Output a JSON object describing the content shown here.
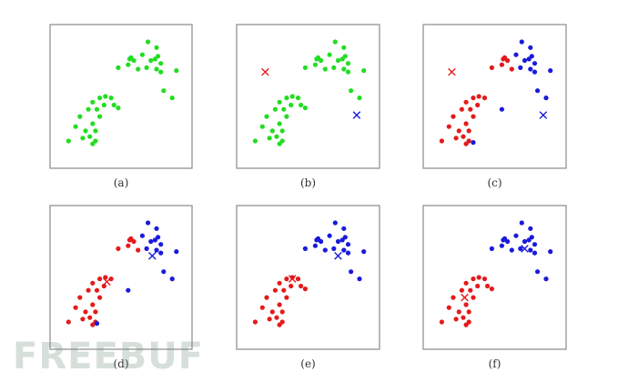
{
  "colors": {
    "green": "#22dd22",
    "red": "#e41a1a",
    "blue": "#1a1adc",
    "frame": "#8a8a8a"
  },
  "watermark": {
    "text": "FREEBUF"
  },
  "chart_data": [
    {
      "type": "scatter",
      "caption": "(a)",
      "xlim": [
        0,
        10
      ],
      "ylim": [
        0,
        10
      ],
      "series": [
        {
          "color": "green",
          "points": [
            [
              1.3,
              1.9
            ],
            [
              1.8,
              2.9
            ],
            [
              2.1,
              3.6
            ],
            [
              2.3,
              2.1
            ],
            [
              2.5,
              2.6
            ],
            [
              2.7,
              4.1
            ],
            [
              3.0,
              3.1
            ],
            [
              3.0,
              4.6
            ],
            [
              3.3,
              4.1
            ],
            [
              3.5,
              3.6
            ],
            [
              3.5,
              4.9
            ],
            [
              3.2,
              2.6
            ],
            [
              3.0,
              1.7
            ],
            [
              3.2,
              1.9
            ],
            [
              2.8,
              2.2
            ],
            [
              3.8,
              4.4
            ],
            [
              3.9,
              5.0
            ],
            [
              4.3,
              4.9
            ],
            [
              4.5,
              4.4
            ],
            [
              4.8,
              4.2
            ],
            [
              4.8,
              7.0
            ],
            [
              5.5,
              7.2
            ],
            [
              5.7,
              7.7
            ],
            [
              5.9,
              7.5
            ],
            [
              6.2,
              6.9
            ],
            [
              6.5,
              7.9
            ],
            [
              6.8,
              7.0
            ],
            [
              7.1,
              7.5
            ],
            [
              7.5,
              6.9
            ],
            [
              7.5,
              8.4
            ],
            [
              7.6,
              7.8
            ],
            [
              7.8,
              7.3
            ],
            [
              7.8,
              6.7
            ],
            [
              8.0,
              5.4
            ],
            [
              8.6,
              4.9
            ],
            [
              8.9,
              6.8
            ],
            [
              6.9,
              8.8
            ],
            [
              7.4,
              7.6
            ],
            [
              5.6,
              7.6
            ]
          ]
        }
      ]
    },
    {
      "type": "scatter",
      "caption": "(b)",
      "xlim": [
        0,
        10
      ],
      "ylim": [
        0,
        10
      ],
      "series": [
        {
          "color": "green",
          "points": [
            [
              1.3,
              1.9
            ],
            [
              1.8,
              2.9
            ],
            [
              2.1,
              3.6
            ],
            [
              2.3,
              2.1
            ],
            [
              2.5,
              2.6
            ],
            [
              2.7,
              4.1
            ],
            [
              3.0,
              3.1
            ],
            [
              3.0,
              4.6
            ],
            [
              3.3,
              4.1
            ],
            [
              3.5,
              3.6
            ],
            [
              3.5,
              4.9
            ],
            [
              3.2,
              2.6
            ],
            [
              3.0,
              1.7
            ],
            [
              3.2,
              1.9
            ],
            [
              2.8,
              2.2
            ],
            [
              3.8,
              4.4
            ],
            [
              3.9,
              5.0
            ],
            [
              4.3,
              4.9
            ],
            [
              4.5,
              4.4
            ],
            [
              4.8,
              4.2
            ],
            [
              4.8,
              7.0
            ],
            [
              5.5,
              7.2
            ],
            [
              5.7,
              7.7
            ],
            [
              5.9,
              7.5
            ],
            [
              6.2,
              6.9
            ],
            [
              6.5,
              7.9
            ],
            [
              6.8,
              7.0
            ],
            [
              7.1,
              7.5
            ],
            [
              7.5,
              6.9
            ],
            [
              7.5,
              8.4
            ],
            [
              7.6,
              7.8
            ],
            [
              7.8,
              7.3
            ],
            [
              7.8,
              6.7
            ],
            [
              8.0,
              5.4
            ],
            [
              8.6,
              4.9
            ],
            [
              8.9,
              6.8
            ],
            [
              6.9,
              8.8
            ],
            [
              7.4,
              7.6
            ],
            [
              5.6,
              7.6
            ]
          ]
        }
      ],
      "centroids": [
        {
          "color": "red",
          "x": 2.0,
          "y": 6.7
        },
        {
          "color": "blue",
          "x": 8.4,
          "y": 3.7
        }
      ]
    },
    {
      "type": "scatter",
      "caption": "(c)",
      "xlim": [
        0,
        10
      ],
      "ylim": [
        0,
        10
      ],
      "series": [
        {
          "color": "red",
          "points": [
            [
              1.3,
              1.9
            ],
            [
              1.8,
              2.9
            ],
            [
              2.1,
              3.6
            ],
            [
              2.3,
              2.1
            ],
            [
              2.5,
              2.6
            ],
            [
              2.7,
              4.1
            ],
            [
              3.0,
              3.1
            ],
            [
              3.0,
              4.6
            ],
            [
              3.3,
              4.1
            ],
            [
              3.5,
              3.6
            ],
            [
              3.5,
              4.9
            ],
            [
              3.2,
              2.6
            ],
            [
              3.0,
              1.7
            ],
            [
              3.2,
              1.9
            ],
            [
              2.8,
              2.2
            ],
            [
              3.8,
              4.4
            ],
            [
              3.9,
              5.0
            ],
            [
              4.3,
              4.9
            ],
            [
              4.8,
              7.0
            ],
            [
              5.5,
              7.2
            ],
            [
              5.7,
              7.7
            ],
            [
              5.9,
              7.5
            ],
            [
              6.2,
              6.9
            ],
            [
              5.6,
              7.6
            ]
          ]
        },
        {
          "color": "blue",
          "points": [
            [
              3.5,
              1.8
            ],
            [
              5.5,
              4.1
            ],
            [
              6.5,
              7.9
            ],
            [
              6.8,
              7.0
            ],
            [
              7.1,
              7.5
            ],
            [
              7.5,
              6.9
            ],
            [
              7.5,
              8.4
            ],
            [
              7.6,
              7.8
            ],
            [
              7.8,
              7.3
            ],
            [
              7.8,
              6.7
            ],
            [
              8.0,
              5.4
            ],
            [
              8.6,
              4.9
            ],
            [
              8.9,
              6.8
            ],
            [
              6.9,
              8.8
            ],
            [
              7.4,
              7.6
            ]
          ]
        }
      ],
      "centroids": [
        {
          "color": "red",
          "x": 2.0,
          "y": 6.7
        },
        {
          "color": "blue",
          "x": 8.4,
          "y": 3.7
        }
      ]
    },
    {
      "type": "scatter",
      "caption": "(d)",
      "xlim": [
        0,
        10
      ],
      "ylim": [
        0,
        10
      ],
      "series": [
        {
          "color": "red",
          "points": [
            [
              1.3,
              1.9
            ],
            [
              1.8,
              2.9
            ],
            [
              2.1,
              3.6
            ],
            [
              2.3,
              2.1
            ],
            [
              2.5,
              2.6
            ],
            [
              2.7,
              4.1
            ],
            [
              3.0,
              3.1
            ],
            [
              3.0,
              4.6
            ],
            [
              3.3,
              4.1
            ],
            [
              3.5,
              3.6
            ],
            [
              3.5,
              4.9
            ],
            [
              3.2,
              2.6
            ],
            [
              3.0,
              1.7
            ],
            [
              3.2,
              1.9
            ],
            [
              2.8,
              2.2
            ],
            [
              3.8,
              4.4
            ],
            [
              3.9,
              5.0
            ],
            [
              4.3,
              4.9
            ],
            [
              4.8,
              7.0
            ],
            [
              5.5,
              7.2
            ],
            [
              5.7,
              7.7
            ],
            [
              5.9,
              7.5
            ],
            [
              6.2,
              6.9
            ],
            [
              5.6,
              7.6
            ]
          ]
        },
        {
          "color": "blue",
          "points": [
            [
              3.3,
              1.8
            ],
            [
              5.5,
              4.1
            ],
            [
              6.5,
              7.9
            ],
            [
              6.8,
              7.0
            ],
            [
              7.1,
              7.5
            ],
            [
              7.5,
              6.9
            ],
            [
              7.5,
              8.4
            ],
            [
              7.6,
              7.8
            ],
            [
              7.8,
              7.3
            ],
            [
              7.8,
              6.7
            ],
            [
              8.0,
              5.4
            ],
            [
              8.6,
              4.9
            ],
            [
              8.9,
              6.8
            ],
            [
              6.9,
              8.8
            ],
            [
              7.4,
              7.6
            ]
          ]
        }
      ],
      "centroids": [
        {
          "color": "red",
          "x": 4.0,
          "y": 4.7
        },
        {
          "color": "blue",
          "x": 7.2,
          "y": 6.5
        }
      ]
    },
    {
      "type": "scatter",
      "caption": "(e)",
      "xlim": [
        0,
        10
      ],
      "ylim": [
        0,
        10
      ],
      "series": [
        {
          "color": "red",
          "points": [
            [
              1.3,
              1.9
            ],
            [
              1.8,
              2.9
            ],
            [
              2.1,
              3.6
            ],
            [
              2.3,
              2.1
            ],
            [
              2.5,
              2.6
            ],
            [
              2.7,
              4.1
            ],
            [
              3.0,
              3.1
            ],
            [
              3.0,
              4.6
            ],
            [
              3.3,
              4.1
            ],
            [
              3.5,
              3.6
            ],
            [
              3.5,
              4.9
            ],
            [
              3.2,
              2.6
            ],
            [
              3.0,
              1.7
            ],
            [
              3.2,
              1.9
            ],
            [
              2.8,
              2.2
            ],
            [
              3.8,
              4.4
            ],
            [
              3.9,
              5.0
            ],
            [
              4.3,
              4.9
            ],
            [
              4.5,
              4.4
            ],
            [
              4.8,
              4.2
            ]
          ]
        },
        {
          "color": "blue",
          "points": [
            [
              4.8,
              7.0
            ],
            [
              5.5,
              7.2
            ],
            [
              5.7,
              7.7
            ],
            [
              5.9,
              7.5
            ],
            [
              6.2,
              6.9
            ],
            [
              6.5,
              7.9
            ],
            [
              6.8,
              7.0
            ],
            [
              7.1,
              7.5
            ],
            [
              7.5,
              6.9
            ],
            [
              7.5,
              8.4
            ],
            [
              7.6,
              7.8
            ],
            [
              7.8,
              7.3
            ],
            [
              7.8,
              6.7
            ],
            [
              8.0,
              5.4
            ],
            [
              8.6,
              4.9
            ],
            [
              8.9,
              6.8
            ],
            [
              6.9,
              8.8
            ],
            [
              7.4,
              7.6
            ],
            [
              5.6,
              7.6
            ]
          ]
        }
      ],
      "centroids": [
        {
          "color": "red",
          "x": 3.9,
          "y": 4.9
        },
        {
          "color": "blue",
          "x": 7.1,
          "y": 6.5
        }
      ]
    },
    {
      "type": "scatter",
      "caption": "(f)",
      "xlim": [
        0,
        10
      ],
      "ylim": [
        0,
        10
      ],
      "series": [
        {
          "color": "red",
          "points": [
            [
              1.3,
              1.9
            ],
            [
              1.8,
              2.9
            ],
            [
              2.1,
              3.6
            ],
            [
              2.3,
              2.1
            ],
            [
              2.5,
              2.6
            ],
            [
              2.7,
              4.1
            ],
            [
              3.0,
              3.1
            ],
            [
              3.0,
              4.6
            ],
            [
              3.3,
              4.1
            ],
            [
              3.5,
              3.6
            ],
            [
              3.5,
              4.9
            ],
            [
              3.2,
              2.6
            ],
            [
              3.0,
              1.7
            ],
            [
              3.2,
              1.9
            ],
            [
              2.8,
              2.2
            ],
            [
              3.8,
              4.4
            ],
            [
              3.9,
              5.0
            ],
            [
              4.3,
              4.9
            ],
            [
              4.5,
              4.4
            ],
            [
              4.8,
              4.2
            ]
          ]
        },
        {
          "color": "blue",
          "points": [
            [
              4.8,
              7.0
            ],
            [
              5.5,
              7.2
            ],
            [
              5.7,
              7.7
            ],
            [
              5.9,
              7.5
            ],
            [
              6.2,
              6.9
            ],
            [
              6.5,
              7.9
            ],
            [
              6.8,
              7.0
            ],
            [
              7.1,
              7.5
            ],
            [
              7.5,
              6.9
            ],
            [
              7.5,
              8.4
            ],
            [
              7.6,
              7.8
            ],
            [
              7.8,
              7.3
            ],
            [
              7.8,
              6.7
            ],
            [
              8.0,
              5.4
            ],
            [
              8.6,
              4.9
            ],
            [
              8.9,
              6.8
            ],
            [
              6.9,
              8.8
            ],
            [
              7.4,
              7.6
            ],
            [
              5.6,
              7.6
            ]
          ]
        }
      ],
      "centroids": [
        {
          "color": "red",
          "x": 2.9,
          "y": 3.6
        },
        {
          "color": "blue",
          "x": 7.1,
          "y": 7.0
        }
      ]
    }
  ]
}
